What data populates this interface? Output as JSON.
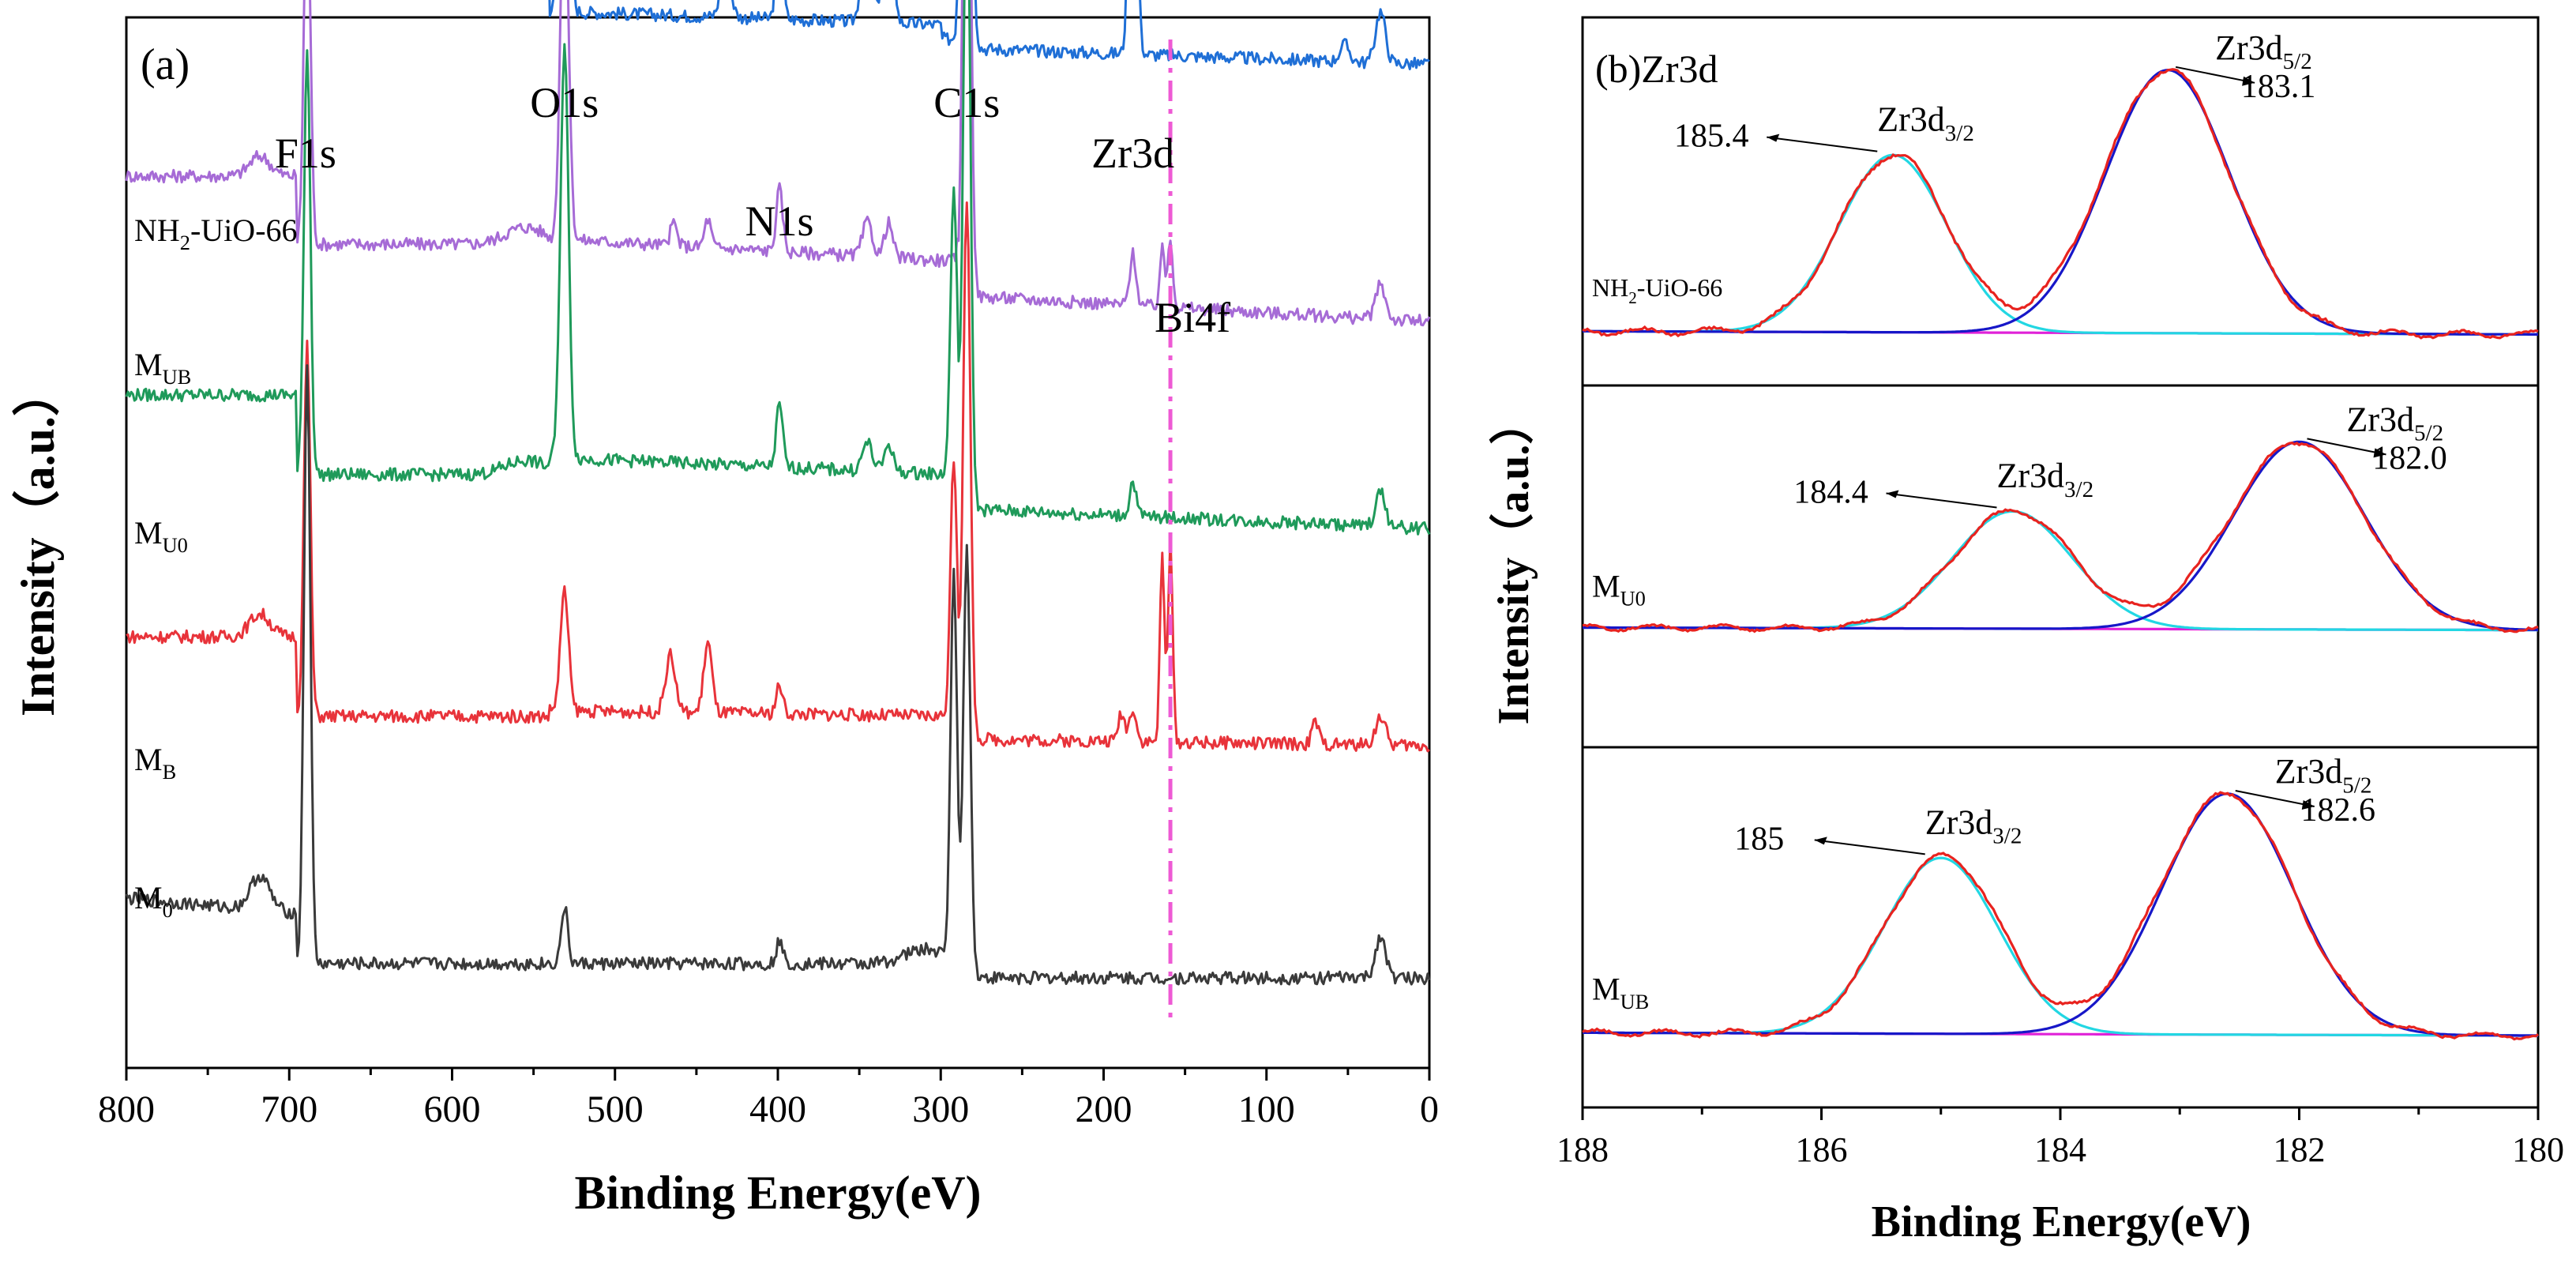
{
  "colors": {
    "NH2-UiO-66": "#1f6fd6",
    "MUB": "#a66bd6",
    "MU0": "#1f9a5a",
    "MB": "#e8333a",
    "M0": "#3a3a3a",
    "bi4f_line": "#ee5ad4",
    "fit_red": "#e8231f",
    "fit_cyan": "#22d7e3",
    "fit_blue": "#1717c8",
    "fit_base": "#e022d8"
  },
  "chart_data": [
    {
      "type": "line",
      "panel_label": "(a)",
      "xlabel": "Binding Energy(eV)",
      "ylabel": "Intensity（a.u.）",
      "xlim": [
        800,
        0
      ],
      "x_ticks": [
        "800",
        "700",
        "600",
        "500",
        "400",
        "300",
        "200",
        "100",
        "0"
      ],
      "peak_labels": [
        {
          "text": "F1s",
          "x": 690
        },
        {
          "text": "O1s",
          "x": 531
        },
        {
          "text": "N1s",
          "x": 399
        },
        {
          "text": "C1s",
          "x": 284
        },
        {
          "text": "Zr3d",
          "x": 182
        },
        {
          "text": "Bi4f",
          "x": 159
        }
      ],
      "series": [
        {
          "name": "NH2-UiO-66",
          "label_main": "NH",
          "label_sub": "2",
          "label_tail": "-UiO-66",
          "baseline": 3.5
        },
        {
          "name": "MUB",
          "label_main": "M",
          "label_sub": "UB",
          "label_tail": "",
          "baseline": 2.65
        },
        {
          "name": "MU0",
          "label_main": "M",
          "label_sub": "U0",
          "label_tail": "",
          "baseline": 1.9
        },
        {
          "name": "MB",
          "label_main": "M",
          "label_sub": "B",
          "label_tail": "",
          "baseline": 1.05
        },
        {
          "name": "M0",
          "label_main": "M",
          "label_sub": "0",
          "label_tail": "",
          "baseline": 0.2
        }
      ]
    },
    {
      "type": "line",
      "panel_label": "(b)Zr3d",
      "xlabel": "Binding Energy(eV)",
      "ylabel": "Intensity（a.u.）",
      "xlim": [
        188,
        180
      ],
      "x_ticks": [
        "188",
        "186",
        "184",
        "182",
        "180"
      ],
      "sub_panels": [
        {
          "sample_main": "NH",
          "sample_sub": "2",
          "sample_tail": "-UiO-66",
          "peaks": [
            {
              "name_main": "Zr3d",
              "name_sub": "3/2",
              "position": 185.4,
              "position_label": "185.4",
              "height": 0.66,
              "sigma": 0.45
            },
            {
              "name_main": "Zr3d",
              "name_sub": "5/2",
              "position": 183.1,
              "position_label": "183.1",
              "height": 0.98,
              "sigma": 0.52
            }
          ]
        },
        {
          "sample_main": "M",
          "sample_sub": "U0",
          "sample_tail": "",
          "peaks": [
            {
              "name_main": "Zr3d",
              "name_sub": "3/2",
              "position": 184.4,
              "position_label": "184.4",
              "height": 0.55,
              "sigma": 0.5
            },
            {
              "name_main": "Zr3d",
              "name_sub": "5/2",
              "position": 182.0,
              "position_label": "182.0",
              "height": 0.88,
              "sigma": 0.55
            }
          ]
        },
        {
          "sample_main": "M",
          "sample_sub": "UB",
          "sample_tail": "",
          "peaks": [
            {
              "name_main": "Zr3d",
              "name_sub": "3/2",
              "position": 185.0,
              "position_label": "185",
              "height": 0.73,
              "sigma": 0.48
            },
            {
              "name_main": "Zr3d",
              "name_sub": "5/2",
              "position": 182.6,
              "position_label": "182.6",
              "height": 1.0,
              "sigma": 0.55
            }
          ]
        }
      ]
    }
  ]
}
